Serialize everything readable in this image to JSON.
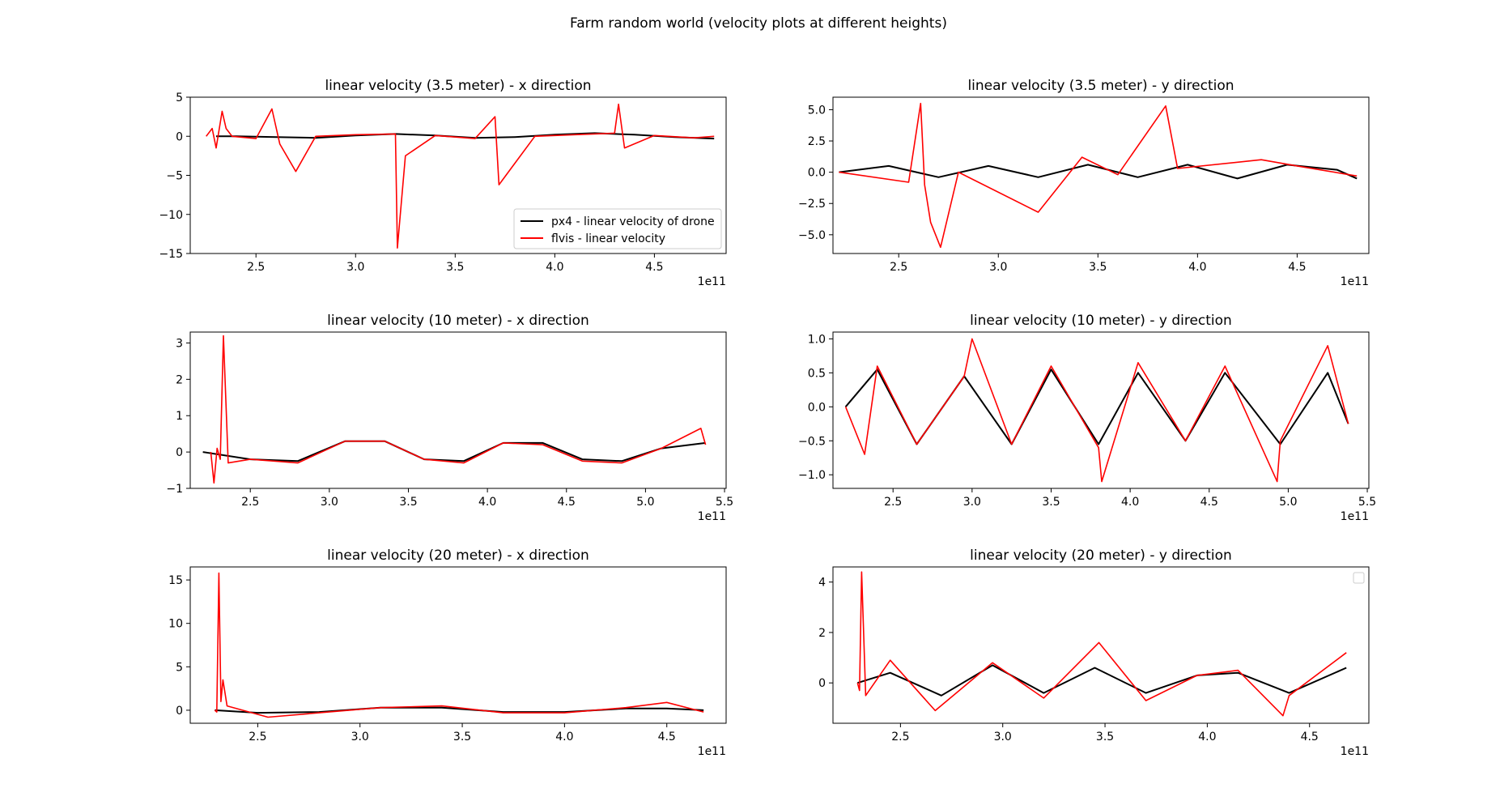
{
  "suptitle": "Farm random world (velocity plots at different heights)",
  "colors": {
    "px4": "#000000",
    "flvis": "#ff0000"
  },
  "legend": [
    {
      "label": "px4 - linear velocity of drone",
      "color": "#000000"
    },
    {
      "label": "flvis - linear velocity",
      "color": "#ff0000"
    }
  ],
  "chart_data": [
    {
      "type": "line",
      "title": "linear velocity (3.5 meter) - x direction",
      "xlabel": "",
      "ylabel": "",
      "x_offset_text": "1e11",
      "xlim": [
        2.17,
        4.86
      ],
      "ylim": [
        -15,
        5
      ],
      "xticks": [
        2.5,
        3.0,
        3.5,
        4.0,
        4.5
      ],
      "xtick_labels": [
        "2.5",
        "3.0",
        "3.5",
        "4.0",
        "4.5"
      ],
      "yticks": [
        -15,
        -10,
        -5,
        0,
        5
      ],
      "ytick_labels": [
        "−15",
        "−10",
        "−5",
        "0",
        "5"
      ],
      "legend": "lower right",
      "series": [
        {
          "name": "px4 - linear velocity of drone",
          "color": "#000000",
          "x": [
            2.3,
            2.4,
            2.6,
            2.8,
            3.0,
            3.2,
            3.4,
            3.6,
            3.8,
            4.0,
            4.2,
            4.4,
            4.6,
            4.8
          ],
          "y": [
            0.0,
            0.0,
            -0.1,
            -0.2,
            0.1,
            0.3,
            0.1,
            -0.2,
            -0.1,
            0.2,
            0.4,
            0.2,
            -0.1,
            -0.3
          ]
        },
        {
          "name": "flvis - linear velocity",
          "color": "#ff0000",
          "x": [
            2.25,
            2.28,
            2.3,
            2.33,
            2.35,
            2.38,
            2.5,
            2.58,
            2.62,
            2.7,
            2.8,
            3.0,
            3.2,
            3.21,
            3.25,
            3.4,
            3.6,
            3.7,
            3.72,
            3.9,
            4.1,
            4.3,
            4.32,
            4.35,
            4.5,
            4.7,
            4.8
          ],
          "y": [
            0.0,
            1.0,
            -1.5,
            3.2,
            1.0,
            0.0,
            -0.3,
            3.5,
            -1.0,
            -4.5,
            0.0,
            0.2,
            0.3,
            -14.3,
            -2.5,
            0.1,
            -0.3,
            2.5,
            -6.2,
            0.0,
            0.2,
            0.4,
            4.1,
            -1.5,
            0.1,
            -0.2,
            0.0
          ]
        }
      ]
    },
    {
      "type": "line",
      "title": "linear velocity (3.5 meter) - y direction",
      "xlabel": "",
      "ylabel": "",
      "x_offset_text": "1e11",
      "xlim": [
        2.17,
        4.86
      ],
      "ylim": [
        -6.5,
        6.0
      ],
      "xticks": [
        2.5,
        3.0,
        3.5,
        4.0,
        4.5
      ],
      "xtick_labels": [
        "2.5",
        "3.0",
        "3.5",
        "4.0",
        "4.5"
      ],
      "yticks": [
        -5.0,
        -2.5,
        0.0,
        2.5,
        5.0
      ],
      "ytick_labels": [
        "−5.0",
        "−2.5",
        "0.0",
        "2.5",
        "5.0"
      ],
      "series": [
        {
          "name": "px4 - linear velocity of drone",
          "color": "#000000",
          "x": [
            2.2,
            2.45,
            2.7,
            2.95,
            3.2,
            3.45,
            3.7,
            3.95,
            4.2,
            4.45,
            4.7,
            4.8
          ],
          "y": [
            0.0,
            0.5,
            -0.4,
            0.5,
            -0.4,
            0.6,
            -0.4,
            0.6,
            -0.5,
            0.6,
            0.2,
            -0.5
          ]
        },
        {
          "name": "flvis - linear velocity",
          "color": "#ff0000",
          "x": [
            2.2,
            2.55,
            2.61,
            2.63,
            2.66,
            2.71,
            2.8,
            3.2,
            3.42,
            3.6,
            3.84,
            3.9,
            4.32,
            4.5,
            4.8
          ],
          "y": [
            0.0,
            -0.8,
            5.5,
            -1.0,
            -4.0,
            -6.0,
            0.0,
            -3.2,
            1.2,
            -0.2,
            5.3,
            0.3,
            1.0,
            0.5,
            -0.3
          ]
        }
      ]
    },
    {
      "type": "line",
      "title": "linear velocity (10 meter) - x direction",
      "xlabel": "",
      "ylabel": "",
      "x_offset_text": "1e11",
      "xlim": [
        2.12,
        5.51
      ],
      "ylim": [
        -1.0,
        3.3
      ],
      "xticks": [
        2.5,
        3.0,
        3.5,
        4.0,
        4.5,
        5.0,
        5.5
      ],
      "xtick_labels": [
        "2.5",
        "3.0",
        "3.5",
        "4.0",
        "4.5",
        "5.0",
        "5.5"
      ],
      "yticks": [
        -1,
        0,
        1,
        2,
        3
      ],
      "ytick_labels": [
        "−1",
        "0",
        "1",
        "2",
        "3"
      ],
      "series": [
        {
          "name": "px4 - linear velocity of drone",
          "color": "#000000",
          "x": [
            2.2,
            2.5,
            2.8,
            3.1,
            3.35,
            3.6,
            3.85,
            4.1,
            4.35,
            4.6,
            4.85,
            5.1,
            5.38
          ],
          "y": [
            0.0,
            -0.2,
            -0.25,
            0.3,
            0.3,
            -0.2,
            -0.25,
            0.25,
            0.25,
            -0.2,
            -0.25,
            0.1,
            0.25
          ]
        },
        {
          "name": "flvis - linear velocity",
          "color": "#ff0000",
          "x": [
            2.25,
            2.27,
            2.29,
            2.31,
            2.33,
            2.36,
            2.5,
            2.8,
            3.1,
            3.35,
            3.6,
            3.85,
            4.1,
            4.35,
            4.6,
            4.85,
            5.1,
            5.35,
            5.38
          ],
          "y": [
            0.0,
            -0.85,
            0.1,
            -0.2,
            3.2,
            -0.3,
            -0.2,
            -0.3,
            0.3,
            0.3,
            -0.2,
            -0.3,
            0.25,
            0.2,
            -0.25,
            -0.3,
            0.1,
            0.65,
            0.2
          ]
        }
      ]
    },
    {
      "type": "line",
      "title": "linear velocity (10 meter) - y direction",
      "xlabel": "",
      "ylabel": "",
      "x_offset_text": "1e11",
      "xlim": [
        2.12,
        5.51
      ],
      "ylim": [
        -1.2,
        1.1
      ],
      "xticks": [
        2.5,
        3.0,
        3.5,
        4.0,
        4.5,
        5.0,
        5.5
      ],
      "xtick_labels": [
        "2.5",
        "3.0",
        "3.5",
        "4.0",
        "4.5",
        "5.0",
        "5.5"
      ],
      "yticks": [
        -1.0,
        -0.5,
        0.0,
        0.5,
        1.0
      ],
      "ytick_labels": [
        "−1.0",
        "−0.5",
        "0.0",
        "0.5",
        "1.0"
      ],
      "series": [
        {
          "name": "px4 - linear velocity of drone",
          "color": "#000000",
          "x": [
            2.2,
            2.4,
            2.65,
            2.95,
            3.25,
            3.5,
            3.8,
            4.05,
            4.35,
            4.6,
            4.95,
            5.25,
            5.38
          ],
          "y": [
            0.0,
            0.55,
            -0.55,
            0.45,
            -0.55,
            0.55,
            -0.55,
            0.5,
            -0.5,
            0.5,
            -0.55,
            0.5,
            -0.25
          ]
        },
        {
          "name": "flvis - linear velocity",
          "color": "#ff0000",
          "x": [
            2.2,
            2.32,
            2.4,
            2.65,
            2.95,
            3.0,
            3.25,
            3.5,
            3.8,
            3.82,
            4.05,
            4.35,
            4.6,
            4.93,
            4.95,
            5.25,
            5.38
          ],
          "y": [
            0.0,
            -0.7,
            0.6,
            -0.55,
            0.45,
            1.0,
            -0.55,
            0.6,
            -0.6,
            -1.1,
            0.65,
            -0.5,
            0.6,
            -1.1,
            -0.5,
            0.9,
            -0.25
          ]
        }
      ]
    },
    {
      "type": "line",
      "title": "linear velocity (20 meter) - x direction",
      "xlabel": "",
      "ylabel": "",
      "x_offset_text": "1e11",
      "xlim": [
        2.17,
        4.79
      ],
      "ylim": [
        -1.5,
        16.5
      ],
      "xticks": [
        2.5,
        3.0,
        3.5,
        4.0,
        4.5
      ],
      "xtick_labels": [
        "2.5",
        "3.0",
        "3.5",
        "4.0",
        "4.5"
      ],
      "yticks": [
        0,
        5,
        10,
        15
      ],
      "ytick_labels": [
        "0",
        "5",
        "10",
        "15"
      ],
      "series": [
        {
          "name": "px4 - linear velocity of drone",
          "color": "#000000",
          "x": [
            2.29,
            2.5,
            2.8,
            3.1,
            3.4,
            3.7,
            4.0,
            4.3,
            4.5,
            4.68
          ],
          "y": [
            0.0,
            -0.3,
            -0.2,
            0.3,
            0.3,
            -0.2,
            -0.2,
            0.2,
            0.2,
            0.0
          ]
        },
        {
          "name": "flvis - linear velocity",
          "color": "#ff0000",
          "x": [
            2.29,
            2.3,
            2.31,
            2.32,
            2.33,
            2.35,
            2.55,
            2.8,
            3.1,
            3.4,
            3.7,
            4.0,
            4.3,
            4.5,
            4.68
          ],
          "y": [
            0.0,
            -0.2,
            15.8,
            1.0,
            3.5,
            0.5,
            -0.8,
            -0.3,
            0.3,
            0.5,
            -0.3,
            -0.3,
            0.3,
            0.9,
            -0.2
          ]
        }
      ]
    },
    {
      "type": "line",
      "title": "linear velocity (20 meter) - y direction",
      "xlabel": "",
      "ylabel": "",
      "x_offset_text": "1e11",
      "xlim": [
        2.17,
        4.79
      ],
      "ylim": [
        -1.6,
        4.6
      ],
      "xticks": [
        2.5,
        3.0,
        3.5,
        4.0,
        4.5
      ],
      "xtick_labels": [
        "2.5",
        "3.0",
        "3.5",
        "4.0",
        "4.5"
      ],
      "yticks": [
        0,
        2,
        4
      ],
      "ytick_labels": [
        "0",
        "2",
        "4"
      ],
      "legend": "upper right (empty)",
      "series": [
        {
          "name": "px4 - linear velocity of drone",
          "color": "#000000",
          "x": [
            2.29,
            2.45,
            2.7,
            2.95,
            3.2,
            3.45,
            3.7,
            3.95,
            4.15,
            4.4,
            4.68
          ],
          "y": [
            0.0,
            0.4,
            -0.5,
            0.7,
            -0.4,
            0.6,
            -0.4,
            0.3,
            0.4,
            -0.4,
            0.6
          ]
        },
        {
          "name": "flvis - linear velocity",
          "color": "#ff0000",
          "x": [
            2.29,
            2.3,
            2.31,
            2.33,
            2.45,
            2.67,
            2.95,
            3.2,
            3.47,
            3.7,
            3.95,
            4.15,
            4.37,
            4.4,
            4.68
          ],
          "y": [
            0.0,
            -0.3,
            4.4,
            -0.5,
            0.9,
            -1.1,
            0.8,
            -0.6,
            1.6,
            -0.7,
            0.3,
            0.5,
            -1.3,
            -0.5,
            1.2
          ]
        }
      ]
    }
  ]
}
